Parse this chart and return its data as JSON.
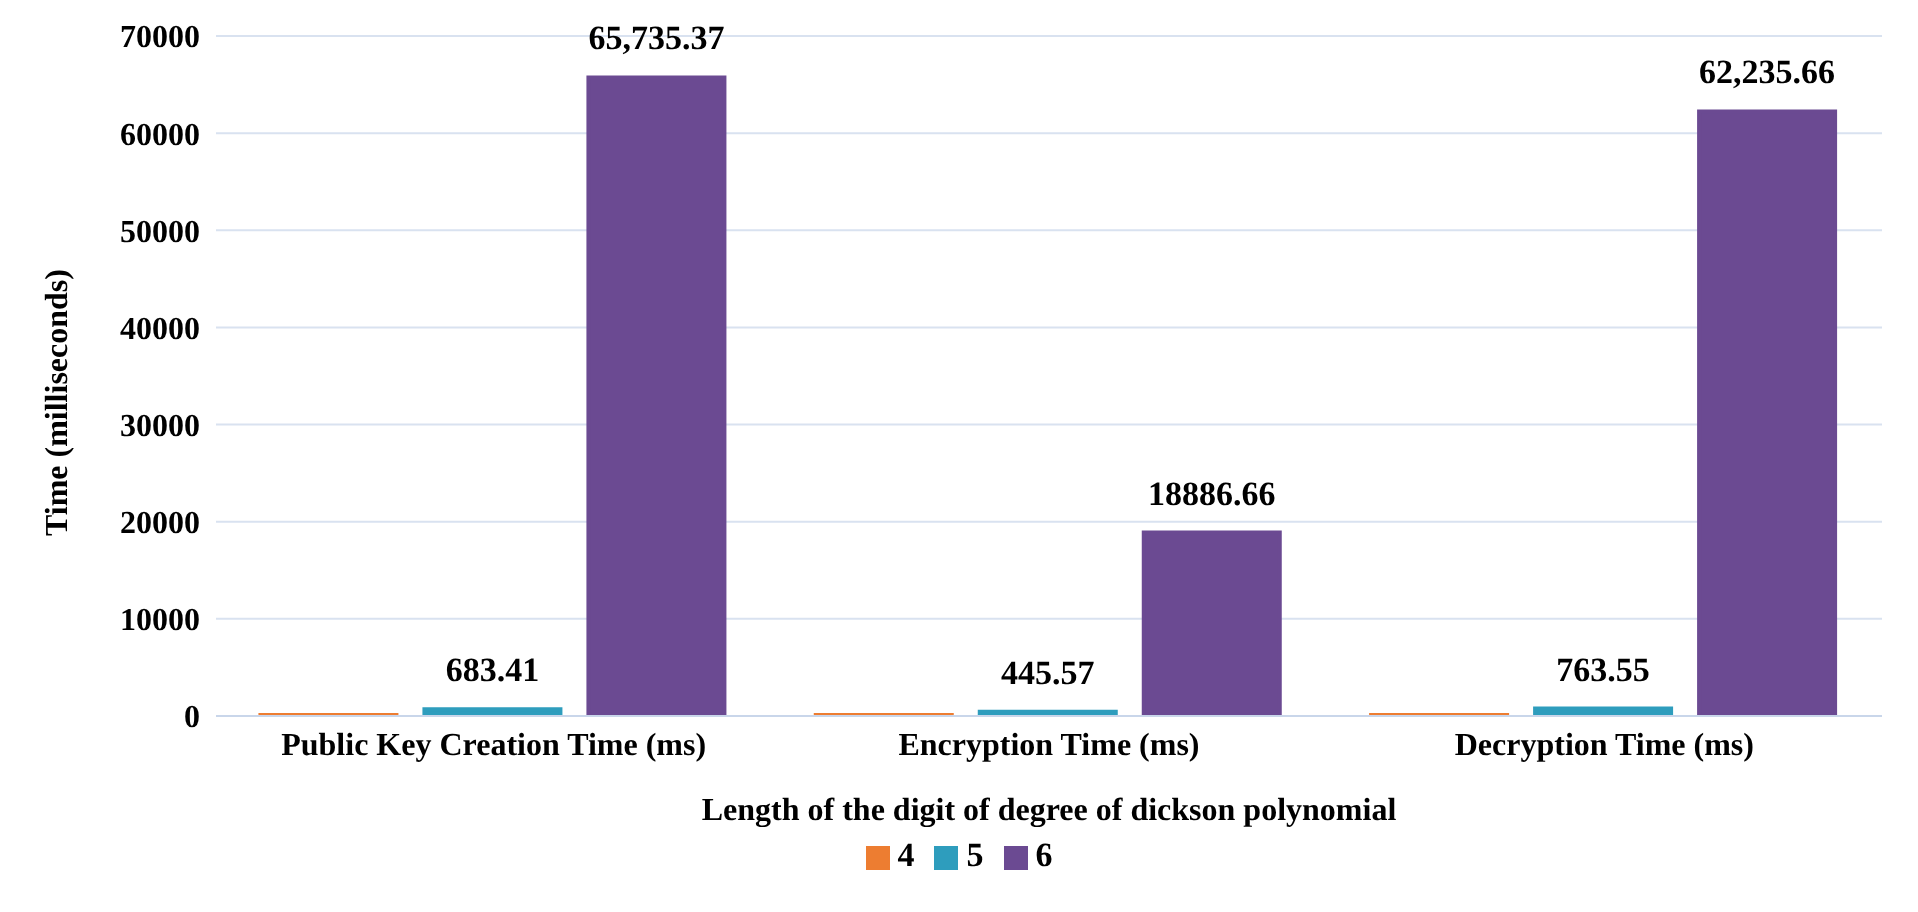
{
  "chart_data": {
    "type": "bar",
    "xlabel": "Length of the digit of degree of dickson polynomial",
    "ylabel": "Time (milliseconds)",
    "categories": [
      "Public Key Creation Time (ms)",
      "Encryption Time (ms)",
      "Decryption Time (ms)"
    ],
    "series": [
      {
        "name": "4",
        "color": "#ed7d31",
        "values": [
          100,
          100,
          100
        ]
      },
      {
        "name": "5",
        "color": "#2e9dbd",
        "values": [
          683.41,
          445.57,
          763.55
        ],
        "value_labels": [
          "683.41",
          "445.57",
          "763.55"
        ]
      },
      {
        "name": "6",
        "color": "#6b4a92",
        "values": [
          65735.37,
          18886.66,
          62235.66
        ],
        "value_labels": [
          "65,735.37",
          "18886.66",
          "62,235.66"
        ]
      }
    ],
    "ylim": [
      0,
      70000
    ],
    "yticks": [
      0,
      10000,
      20000,
      30000,
      40000,
      50000,
      60000,
      70000
    ],
    "grid": "y",
    "legend": "bottom"
  }
}
